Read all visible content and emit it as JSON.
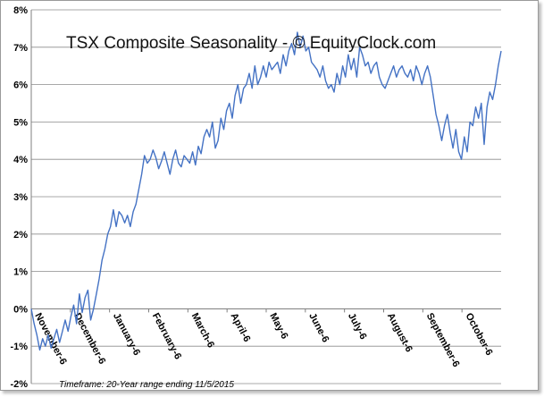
{
  "chart_data": {
    "type": "line",
    "title": "TSX Composite Seasonality - © EquityClock.com",
    "footnote": "Timeframe: 20-Year range ending  11/5/2015",
    "line_color": "#4472c4",
    "grid": true,
    "y_tick_labels": [
      "-2%",
      "-1%",
      "0%",
      "1%",
      "2%",
      "3%",
      "4%",
      "5%",
      "6%",
      "7%",
      "8%"
    ],
    "ylim": [
      -2,
      8
    ],
    "x_tick_labels": [
      "November-6",
      "December-6",
      "January-6",
      "February-6",
      "March-6",
      "April-6",
      "May-6",
      "June-6",
      "July-6",
      "August-6",
      "September-6",
      "October-6"
    ],
    "x_start": "November-6",
    "series": [
      {
        "values": [
          0.0,
          -0.4,
          -0.7,
          -1.1,
          -0.8,
          -1.0,
          -0.7,
          -1.05,
          -0.8,
          -0.55,
          -0.9,
          -0.6,
          -0.3,
          -0.6,
          -0.2,
          0.1,
          -0.4,
          0.4,
          -0.1,
          0.3,
          0.5,
          -0.3,
          0.0,
          0.4,
          0.8,
          1.3,
          1.6,
          2.0,
          2.2,
          2.65,
          2.2,
          2.6,
          2.5,
          2.3,
          2.5,
          2.2,
          2.6,
          2.8,
          3.2,
          3.6,
          4.1,
          3.9,
          4.0,
          4.25,
          4.05,
          3.75,
          3.95,
          4.2,
          3.9,
          3.6,
          4.0,
          4.25,
          3.9,
          3.8,
          4.1,
          4.0,
          3.9,
          4.2,
          3.85,
          4.35,
          4.15,
          4.6,
          4.8,
          4.6,
          5.0,
          4.3,
          4.5,
          5.1,
          4.8,
          5.3,
          5.5,
          5.1,
          5.7,
          6.0,
          5.5,
          5.9,
          6.0,
          6.3,
          5.9,
          6.5,
          6.0,
          6.2,
          6.5,
          6.2,
          6.6,
          6.4,
          6.5,
          6.6,
          6.3,
          6.8,
          6.5,
          6.9,
          7.1,
          6.8,
          7.4,
          7.0,
          7.3,
          6.9,
          7.0,
          6.6,
          6.5,
          6.4,
          6.2,
          6.5,
          6.1,
          5.9,
          6.0,
          5.8,
          6.3,
          6.0,
          6.5,
          6.2,
          6.8,
          6.4,
          6.7,
          6.2,
          7.0,
          6.8,
          6.5,
          6.6,
          6.3,
          6.5,
          6.6,
          6.2,
          6.0,
          5.9,
          6.1,
          6.3,
          6.5,
          6.2,
          6.4,
          6.5,
          6.3,
          6.2,
          6.4,
          6.1,
          6.5,
          6.3,
          6.0,
          6.3,
          6.5,
          6.2,
          5.7,
          5.2,
          4.9,
          4.5,
          4.9,
          5.2,
          4.7,
          4.3,
          4.8,
          4.2,
          4.0,
          4.6,
          4.2,
          5.0,
          4.9,
          5.4,
          5.1,
          5.5,
          4.4,
          5.4,
          5.8,
          5.6,
          6.0,
          6.5,
          6.9
        ]
      }
    ]
  }
}
